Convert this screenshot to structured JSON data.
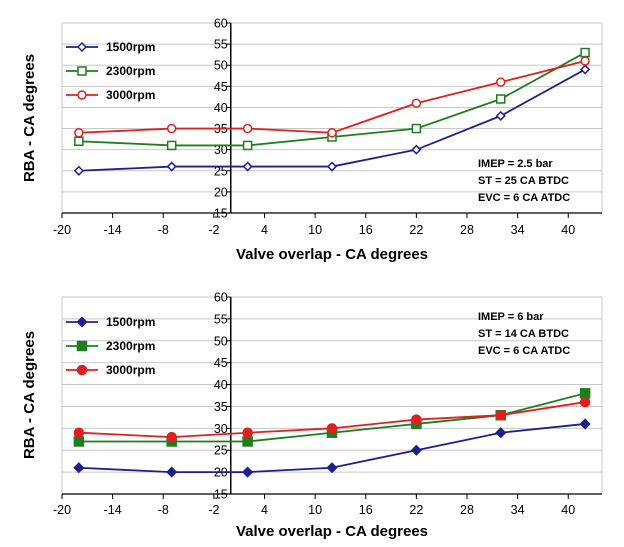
{
  "chart_data": [
    {
      "type": "line",
      "marker_style": "open",
      "xlabel": "Valve overlap  -  CA degrees",
      "ylabel": "RBA  -  CA degrees",
      "xlim": [
        -20,
        44
      ],
      "ylim": [
        15,
        60
      ],
      "x_ticks": [
        -20,
        -14,
        -8,
        -2,
        4,
        10,
        16,
        22,
        28,
        34,
        40
      ],
      "y_ticks": [
        15,
        20,
        25,
        30,
        35,
        40,
        45,
        50,
        55,
        60
      ],
      "y_axis_at_x": 0,
      "grid": "horizontal",
      "legend_position": "top-left",
      "annotations": [
        "IMEP = 2.5 bar",
        "ST = 25 CA BTDC",
        "EVC = 6 CA ATDC"
      ],
      "annotation_position": "bottom-right",
      "series": [
        {
          "name": "1500rpm",
          "color": "#1F1F8C",
          "marker": "diamond",
          "x": [
            -18,
            -7,
            2,
            12,
            22,
            32,
            42
          ],
          "y": [
            25,
            26,
            26,
            26,
            30,
            38,
            49
          ]
        },
        {
          "name": "2300rpm",
          "color": "#1E7E1E",
          "marker": "square",
          "x": [
            -18,
            -7,
            2,
            12,
            22,
            32,
            42
          ],
          "y": [
            32,
            31,
            31,
            33,
            35,
            42,
            53
          ]
        },
        {
          "name": "3000rpm",
          "color": "#E02020",
          "marker": "circle",
          "x": [
            -18,
            -7,
            2,
            12,
            22,
            32,
            42
          ],
          "y": [
            34,
            35,
            35,
            34,
            41,
            46,
            51
          ]
        }
      ]
    },
    {
      "type": "line",
      "marker_style": "filled",
      "xlabel": "Valve overlap  -  CA degrees",
      "ylabel": "RBA  -  CA degrees",
      "xlim": [
        -20,
        44
      ],
      "ylim": [
        15,
        60
      ],
      "x_ticks": [
        -20,
        -14,
        -8,
        -2,
        4,
        10,
        16,
        22,
        28,
        34,
        40
      ],
      "y_ticks": [
        15,
        20,
        25,
        30,
        35,
        40,
        45,
        50,
        55,
        60
      ],
      "y_axis_at_x": 0,
      "grid": "horizontal",
      "legend_position": "top-left",
      "annotations": [
        "IMEP = 6 bar",
        "ST = 14 CA BTDC",
        "EVC = 6 CA ATDC"
      ],
      "annotation_position": "top-right",
      "series": [
        {
          "name": "1500rpm",
          "color": "#1F1F8C",
          "marker": "diamond",
          "x": [
            -18,
            -7,
            2,
            12,
            22,
            32,
            42
          ],
          "y": [
            21,
            20,
            20,
            21,
            25,
            29,
            31
          ]
        },
        {
          "name": "2300rpm",
          "color": "#1E7E1E",
          "marker": "square",
          "x": [
            -18,
            -7,
            2,
            12,
            22,
            32,
            42
          ],
          "y": [
            27,
            27,
            27,
            29,
            31,
            33,
            38
          ]
        },
        {
          "name": "3000rpm",
          "color": "#E02020",
          "marker": "circle",
          "x": [
            -18,
            -7,
            2,
            12,
            22,
            32,
            42
          ],
          "y": [
            29,
            28,
            29,
            30,
            32,
            33,
            36
          ]
        }
      ]
    }
  ]
}
